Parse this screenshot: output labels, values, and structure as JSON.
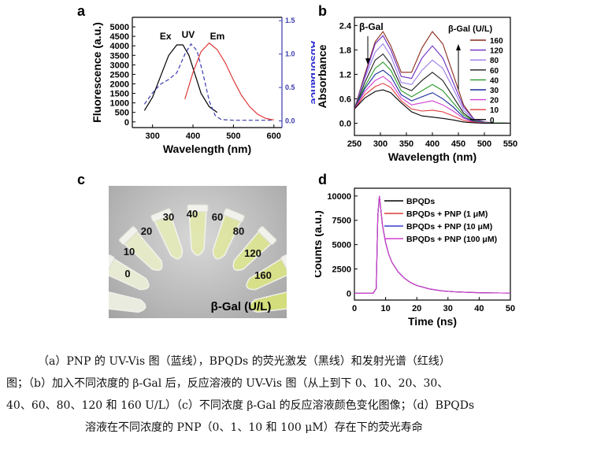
{
  "panel_labels": {
    "a": "a",
    "b": "b",
    "c": "c",
    "d": "d"
  },
  "photo": {
    "label": "β-Gal (U/L)",
    "tubes": [
      "0",
      "10",
      "20",
      "30",
      "40",
      "60",
      "80",
      "120",
      "160"
    ],
    "colors": {
      "background": "#b9b9b9",
      "tube_low": "#eef0e2",
      "tube_high": "#d6e07a"
    }
  },
  "caption": {
    "line1": "（a）PNP 的 UV-Vis 图（蓝线），BPQDs 的荧光激发（黑线）和发射光谱（红线）",
    "line2": "图；（b）加入不同浓度的 β-Gal 后，反应溶液的 UV-Vis 图（从上到下 0、10、20、30、",
    "line3": "40、60、80、120 和 160 U/L）（c）不同浓度 β-Gal 的反应溶液颜色变化图像；（d）BPQDs",
    "line4": "溶液在不同浓度的 PNP（0、1、10 和 100 μM）存在下的荧光寿命"
  },
  "chart_data": [
    {
      "id": "a",
      "type": "line",
      "xlabel": "Wavelength (nm)",
      "ylabel": "Fluorescence (a.u.)",
      "y2label": "Absorbance",
      "xlim": [
        250,
        620
      ],
      "ylim": [
        -300,
        5500
      ],
      "y2lim": [
        -0.1,
        1.55
      ],
      "xticks": [
        300,
        400,
        500,
        600
      ],
      "yticks": [
        0,
        500,
        1000,
        1500,
        2000,
        2500,
        3000,
        3500,
        4000,
        4500,
        5000
      ],
      "y2ticks": [
        "0.0",
        "0.5",
        "1.0",
        "1.5"
      ],
      "y2tick_values": [
        0,
        0.5,
        1.0,
        1.5
      ],
      "series": [
        {
          "name": "Ex",
          "axis": "left",
          "color": "#000000",
          "dash": false,
          "x": [
            280,
            300,
            320,
            340,
            360,
            375,
            390,
            405,
            420,
            440,
            460
          ],
          "y": [
            600,
            1300,
            2400,
            3500,
            4050,
            4050,
            3500,
            2500,
            1500,
            800,
            500
          ]
        },
        {
          "name": "UV",
          "axis": "right",
          "color": "#3b3bb0",
          "dash": true,
          "x": [
            280,
            300,
            320,
            340,
            360,
            380,
            395,
            410,
            425,
            440,
            455,
            470,
            500,
            550,
            600
          ],
          "y": [
            0.25,
            0.42,
            0.55,
            0.62,
            0.72,
            1.0,
            1.15,
            1.05,
            0.7,
            0.3,
            0.08,
            0.02,
            0.01,
            0.01,
            0.01
          ]
        },
        {
          "name": "Em",
          "axis": "left",
          "color": "#e03a3a",
          "dash": false,
          "x": [
            380,
            400,
            420,
            440,
            460,
            480,
            500,
            520,
            540,
            560,
            580,
            600
          ],
          "y": [
            1200,
            2600,
            3700,
            4150,
            3800,
            3100,
            2200,
            1400,
            800,
            400,
            180,
            100
          ]
        }
      ]
    },
    {
      "id": "b",
      "type": "line",
      "xlabel": "Wavelength (nm)",
      "ylabel": "Absorbance",
      "xlim": [
        250,
        550
      ],
      "ylim": [
        -0.3,
        2.6
      ],
      "xticks": [
        250,
        300,
        350,
        400,
        450,
        500,
        550
      ],
      "yticks": [
        "0.0",
        "0.6",
        "1.2",
        "1.8",
        "2.4"
      ],
      "ytick_values": [
        0,
        0.6,
        1.2,
        1.8,
        2.4
      ],
      "annotation_left": "β-Gal",
      "legend_title": "β-Gal (U/L)",
      "x": [
        250,
        270,
        290,
        305,
        320,
        340,
        360,
        380,
        400,
        420,
        440,
        460,
        480,
        500,
        520,
        550
      ],
      "series": [
        {
          "name": "160",
          "color": "#8a2a1a",
          "values": [
            0.35,
            1.2,
            2.0,
            2.25,
            1.9,
            1.25,
            1.25,
            1.85,
            2.25,
            1.95,
            1.2,
            0.45,
            0.1,
            0.03,
            0.01,
            0.0
          ]
        },
        {
          "name": "120",
          "color": "#6a2ac0",
          "values": [
            0.35,
            1.15,
            1.95,
            2.15,
            1.8,
            1.15,
            1.1,
            1.6,
            1.9,
            1.6,
            1.0,
            0.4,
            0.1,
            0.03,
            0.01,
            0.0
          ]
        },
        {
          "name": "80",
          "color": "#9a7ae8",
          "values": [
            0.35,
            1.1,
            1.75,
            1.95,
            1.65,
            1.0,
            0.95,
            1.3,
            1.55,
            1.35,
            0.85,
            0.32,
            0.08,
            0.02,
            0.01,
            0.0
          ]
        },
        {
          "name": "60",
          "color": "#1a1a1a",
          "values": [
            0.35,
            1.0,
            1.55,
            1.7,
            1.45,
            0.9,
            0.8,
            1.05,
            1.25,
            1.05,
            0.65,
            0.25,
            0.06,
            0.02,
            0.01,
            0.0
          ]
        },
        {
          "name": "40",
          "color": "#2a9a2a",
          "values": [
            0.35,
            0.9,
            1.35,
            1.5,
            1.3,
            0.8,
            0.65,
            0.8,
            0.95,
            0.8,
            0.5,
            0.2,
            0.05,
            0.02,
            0.01,
            0.0
          ]
        },
        {
          "name": "30",
          "color": "#1a2a9a",
          "values": [
            0.35,
            0.85,
            1.2,
            1.3,
            1.15,
            0.7,
            0.55,
            0.65,
            0.75,
            0.6,
            0.4,
            0.15,
            0.04,
            0.01,
            0.0,
            0.0
          ]
        },
        {
          "name": "20",
          "color": "#d040d0",
          "values": [
            0.35,
            0.78,
            1.05,
            1.15,
            1.0,
            0.62,
            0.45,
            0.5,
            0.55,
            0.45,
            0.3,
            0.12,
            0.03,
            0.01,
            0.0,
            0.0
          ]
        },
        {
          "name": "10",
          "color": "#e03a3a",
          "values": [
            0.35,
            0.7,
            0.9,
            0.98,
            0.88,
            0.55,
            0.35,
            0.3,
            0.32,
            0.28,
            0.18,
            0.07,
            0.02,
            0.0,
            0.0,
            0.0
          ]
        },
        {
          "name": "0",
          "color": "#000000",
          "values": [
            0.35,
            0.62,
            0.78,
            0.82,
            0.75,
            0.5,
            0.28,
            0.18,
            0.15,
            0.12,
            0.08,
            0.03,
            0.01,
            0.0,
            0.0,
            0.0
          ]
        }
      ]
    },
    {
      "id": "d",
      "type": "line",
      "xlabel": "Time (ns)",
      "ylabel": "Counts (a.u.)",
      "xlim": [
        0,
        50
      ],
      "ylim": [
        -700,
        10800
      ],
      "xticks": [
        0,
        10,
        20,
        30,
        40,
        50
      ],
      "yticks": [
        0,
        2500,
        5000,
        7500,
        10000
      ],
      "x": [
        0,
        6,
        7,
        7.5,
        8,
        8.5,
        9,
        10,
        11,
        12,
        14,
        16,
        18,
        20,
        24,
        28,
        32,
        38,
        44,
        50
      ],
      "series": [
        {
          "name": "BPQDs",
          "color": "#000000",
          "values": [
            0,
            0,
            500,
            8000,
            10000,
            8500,
            7000,
            5200,
            4000,
            3200,
            2200,
            1550,
            1100,
            800,
            450,
            250,
            150,
            80,
            40,
            20
          ]
        },
        {
          "name": "BPQDs + PNP (1 μM)",
          "color": "#e03a3a",
          "values": [
            0,
            0,
            500,
            8000,
            10000,
            8500,
            7000,
            5200,
            4000,
            3200,
            2200,
            1550,
            1100,
            800,
            450,
            250,
            150,
            80,
            40,
            20
          ]
        },
        {
          "name": "BPQDs + PNP (10 μM)",
          "color": "#3b3bd0",
          "values": [
            0,
            0,
            500,
            8000,
            10000,
            8500,
            7000,
            5200,
            4000,
            3200,
            2200,
            1550,
            1100,
            800,
            450,
            250,
            150,
            80,
            40,
            20
          ]
        },
        {
          "name": "BPQDs + PNP (100 μM)",
          "color": "#d040d0",
          "values": [
            0,
            0,
            500,
            8000,
            10000,
            8500,
            7000,
            5200,
            4000,
            3200,
            2200,
            1550,
            1100,
            800,
            450,
            250,
            150,
            80,
            40,
            20
          ]
        }
      ]
    }
  ]
}
